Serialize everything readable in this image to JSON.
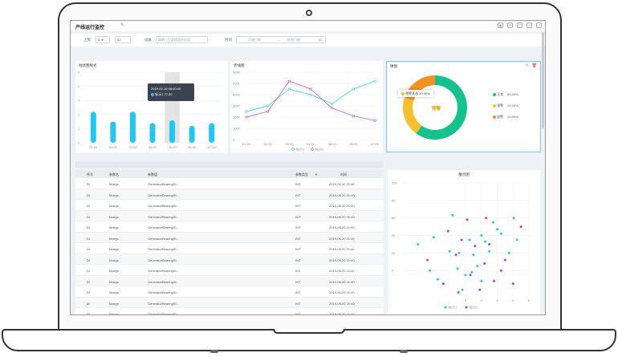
{
  "header": {
    "title": "产线运行监控"
  },
  "filter": {
    "label_line": "上限",
    "line_select": "3-",
    "line_value": "22",
    "label_device": "设备",
    "device_placeholder": "请输入您要搜索的内容",
    "label_time": "时间",
    "start_placeholder": "开始日期",
    "range_sep": "—",
    "end_placeholder": "结束日期"
  },
  "cards": {
    "bar_title": "柱状图样式",
    "line_title": "折线图",
    "ring_title": "饼图",
    "scatter_title": "散点图"
  },
  "tooltip": {
    "date": "2019-02-16 08:00:00",
    "series": "标示1",
    "value": "77.00"
  },
  "ring": {
    "center_label": "预警",
    "tooltip": "预警状态  20.00%",
    "legend": [
      {
        "name": "正常",
        "pct": "60.00%",
        "color": "#13c28d"
      },
      {
        "name": "预警",
        "pct": "20.00%",
        "color": "#f5c02b"
      },
      {
        "name": "报警",
        "pct": "20.00%",
        "color": "#f5921f"
      }
    ]
  },
  "colors": {
    "cyan": "#1fc8f2",
    "purple": "#b03fd9",
    "grid": "#eeeeee"
  },
  "chart_data": [
    {
      "type": "bar",
      "title": "柱状图样式",
      "categories": [
        "01:00",
        "02:00",
        "03:00",
        "04:00",
        "05:00",
        "06:00",
        "07:00"
      ],
      "values": [
        2.2,
        1.5,
        2.2,
        1.4,
        1.6,
        1.2,
        1.4
      ],
      "ylim": [
        0,
        5
      ],
      "yticks": [
        "0",
        "1",
        "2",
        "3",
        "4",
        "5"
      ]
    },
    {
      "type": "line",
      "title": "折线图",
      "categories": [
        "01:00",
        "02:00",
        "03:00",
        "04:00",
        "05:00",
        "06:00",
        "07:00"
      ],
      "series": [
        {
          "name": "标示1",
          "values": [
            2500,
            3000,
            4500,
            4000,
            3200,
            4500,
            5200
          ]
        },
        {
          "name": "标示2",
          "values": [
            2000,
            2500,
            5200,
            4500,
            2800,
            2100,
            1700
          ]
        }
      ],
      "ylim": [
        0,
        6000
      ],
      "yticks": [
        "0",
        "1000",
        "2000",
        "3000",
        "4000",
        "5000",
        "6000"
      ]
    },
    {
      "type": "pie",
      "title": "饼图",
      "labels": [
        "正常",
        "预警",
        "报警"
      ],
      "values": [
        60,
        20,
        20
      ]
    },
    {
      "type": "scatter",
      "title": "散点图",
      "xlim": [
        -8,
        8
      ],
      "ylim": [
        -30,
        100
      ],
      "xticks": [
        "0",
        "2",
        "4",
        "6",
        "8"
      ],
      "yticks": [
        "0",
        "20",
        "40",
        "60",
        "80",
        "100"
      ],
      "series": [
        {
          "name": "标示1",
          "points": [
            [
              -1.6,
              63
            ],
            [
              3.5,
              55
            ],
            [
              4,
              47
            ],
            [
              6.1,
              60
            ],
            [
              2,
              40
            ],
            [
              -4,
              38
            ],
            [
              -6,
              30
            ],
            [
              -2,
              22
            ],
            [
              -0.8,
              20
            ],
            [
              0.5,
              35
            ],
            [
              1,
              18
            ],
            [
              2.5,
              33
            ],
            [
              4.5,
              42
            ],
            [
              1.5,
              5
            ],
            [
              -1,
              2
            ],
            [
              -3.5,
              -10
            ],
            [
              -4.5,
              0
            ],
            [
              0,
              -5
            ],
            [
              2,
              -12
            ],
            [
              -0.4,
              -22
            ],
            [
              3,
              22
            ],
            [
              5.5,
              20
            ],
            [
              0.8,
              -2
            ],
            [
              6.5,
              35
            ]
          ]
        },
        {
          "name": "标示2",
          "points": [
            [
              0.2,
              58
            ],
            [
              2.6,
              60
            ],
            [
              7,
              50
            ],
            [
              -2.2,
              45
            ],
            [
              -0.5,
              35
            ],
            [
              3,
              30
            ],
            [
              1.2,
              28
            ],
            [
              -1.2,
              18
            ],
            [
              5,
              12
            ],
            [
              2.4,
              8
            ],
            [
              -4.8,
              12
            ],
            [
              0.6,
              -5
            ],
            [
              -2.8,
              -15
            ],
            [
              4.5,
              0
            ],
            [
              6,
              -15
            ],
            [
              1.8,
              -22
            ],
            [
              -0.9,
              -25
            ],
            [
              3.6,
              -12
            ]
          ]
        }
      ]
    }
  ],
  "table": {
    "headers": [
      "序号",
      "参数名",
      "参数值",
      "参数类型",
      "时间"
    ],
    "rows": [
      [
        "DI",
        "Maxgs",
        "GeneratorBearingSt...",
        "INT",
        "2019-05-20 21:40"
      ],
      [
        "DI",
        "Maxgs",
        "GeneratorBearingSt...",
        "INT",
        "2019-05-20 21:40"
      ],
      [
        "DI",
        "Maxgs",
        "GeneratorBearingSt...",
        "INT",
        "2019-05-20 21:40"
      ],
      [
        "DI",
        "Maxgs",
        "GeneratorBearingSt...",
        "INT",
        "2019-05-20 21:40"
      ],
      [
        "DI",
        "Maxgs",
        "GeneratorBearingSt...",
        "INT",
        "2019-05-20 21:40"
      ],
      [
        "DI",
        "Maxgs",
        "GeneratorBearingSt...",
        "INT",
        "2019-05-20 21:40"
      ],
      [
        "DI",
        "Maxgs",
        "GeneratorBearingSt...",
        "INT",
        "2019-05-20 21:40"
      ],
      [
        "DI",
        "Maxgs",
        "GeneratorBearingSt...",
        "INT",
        "2019-05-20 21:40"
      ],
      [
        "DI",
        "Maxgs",
        "GeneratorBearingSt...",
        "INT",
        "2019-05-20 21:40"
      ],
      [
        "DI",
        "Maxgs",
        "GeneratorBearingSt...",
        "INT",
        "2019-05-20 21:40"
      ],
      [
        "DI",
        "Maxgs",
        "GeneratorBearingSt...",
        "INT",
        "2019-05-20 21:40"
      ],
      [
        "DI",
        "Maxgs",
        "GeneratorBearingSt...",
        "INT",
        "2019-05-20 21:40"
      ],
      [
        "DI",
        "Maxgs",
        "GeneratorBearingSt...",
        "INT",
        "2019-05-20 21:40"
      ]
    ]
  }
}
